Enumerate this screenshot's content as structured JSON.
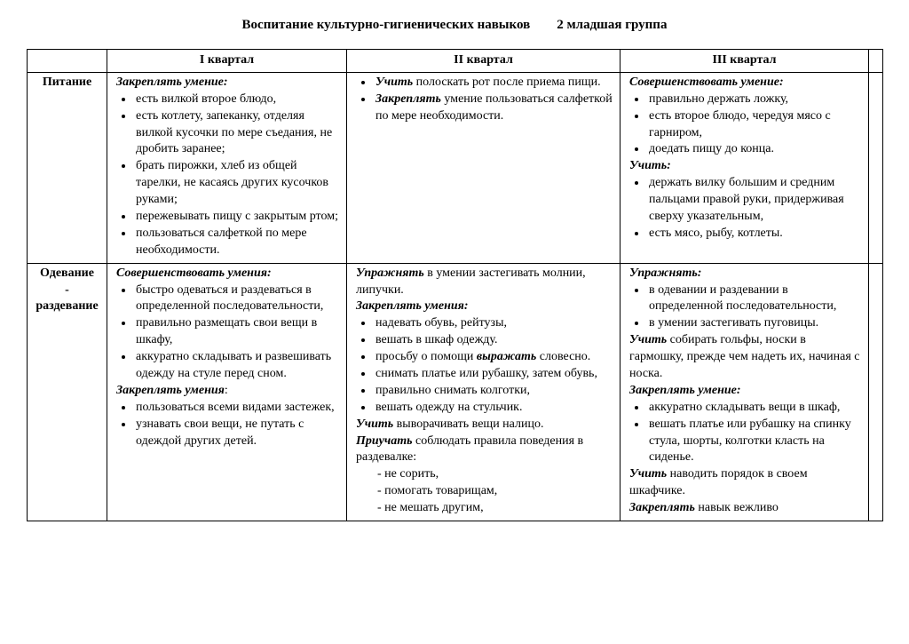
{
  "title_left": "Воспитание культурно-гигиенических навыков",
  "title_right": "2 младшая группа",
  "headers": [
    "",
    "I квартал",
    "II квартал",
    "III квартал"
  ],
  "rows": [
    {
      "label": "Питание",
      "q1": [
        {
          "type": "line",
          "cls": "plain-line",
          "segs": [
            {
              "t": "Закреплять умение:",
              "s": "bi"
            }
          ]
        },
        {
          "type": "ul",
          "items": [
            [
              {
                "t": "есть вилкой второе блюдо,",
                "s": ""
              }
            ],
            [
              {
                "t": "есть котлету, запеканку, отделяя вилкой кусочки по мере съедания, не дробить заранее;",
                "s": ""
              }
            ],
            [
              {
                "t": "брать пирожки, хлеб из общей тарелки, не касаясь других кусочков руками;",
                "s": ""
              }
            ],
            [
              {
                "t": "пережевывать пищу с закрытым ртом;",
                "s": ""
              }
            ],
            [
              {
                "t": "пользоваться салфеткой по мере необходимости.",
                "s": ""
              }
            ]
          ]
        }
      ],
      "q2": [
        {
          "type": "ul",
          "items": [
            [
              {
                "t": "Учить",
                "s": "bi"
              },
              {
                "t": " полоскать рот после приема пищи.",
                "s": ""
              }
            ],
            [
              {
                "t": "Закреплять",
                "s": "bi"
              },
              {
                "t": " умение пользоваться салфеткой по мере необходимости.",
                "s": ""
              }
            ]
          ]
        }
      ],
      "q3": [
        {
          "type": "line",
          "cls": "plain-line",
          "segs": [
            {
              "t": "Совершенствовать умение:",
              "s": "bi"
            }
          ]
        },
        {
          "type": "ul",
          "items": [
            [
              {
                "t": "правильно держать ложку,",
                "s": ""
              }
            ],
            [
              {
                "t": " есть второе блюдо, чередуя мясо с гарниром,",
                "s": ""
              }
            ],
            [
              {
                "t": "доедать пищу до конца.",
                "s": ""
              }
            ]
          ]
        },
        {
          "type": "line",
          "cls": "plain-line",
          "segs": [
            {
              "t": "Учить:",
              "s": "bi"
            }
          ]
        },
        {
          "type": "ul",
          "items": [
            [
              {
                "t": "держать вилку большим и средним пальцами правой руки, придерживая сверху указательным,",
                "s": ""
              }
            ],
            [
              {
                "t": "есть мясо, рыбу, котлеты.",
                "s": ""
              }
            ]
          ]
        }
      ]
    },
    {
      "label": "Одевание\n-\nраздевание",
      "q1": [
        {
          "type": "line",
          "cls": "plain-line",
          "segs": [
            {
              "t": "Совершенствовать умения:",
              "s": "bi"
            }
          ]
        },
        {
          "type": "ul",
          "items": [
            [
              {
                "t": "быстро одеваться и раздеваться в определенной последовательности,",
                "s": ""
              }
            ],
            [
              {
                "t": "правильно размещать свои вещи в шкафу,",
                "s": ""
              }
            ],
            [
              {
                "t": "аккуратно складывать и развешивать одежду на стуле перед сном.",
                "s": ""
              }
            ]
          ]
        },
        {
          "type": "line",
          "cls": "plain-line",
          "segs": [
            {
              "t": "Закреплять умения",
              "s": "bi"
            },
            {
              "t": ":",
              "s": ""
            }
          ]
        },
        {
          "type": "ul",
          "items": [
            [
              {
                "t": "пользоваться всеми видами застежек,",
                "s": ""
              }
            ],
            [
              {
                "t": "узнавать свои вещи, не путать с одеждой других детей.",
                "s": ""
              }
            ]
          ]
        }
      ],
      "q2": [
        {
          "type": "line",
          "cls": "plain-line",
          "segs": [
            {
              "t": " Упражнять",
              "s": "bi"
            },
            {
              "t": " в умении застегивать молнии, липучки.",
              "s": ""
            }
          ]
        },
        {
          "type": "line",
          "cls": "plain-line",
          "segs": [
            {
              "t": "Закреплять умения:",
              "s": "bi"
            }
          ]
        },
        {
          "type": "ul",
          "items": [
            [
              {
                "t": "надевать обувь, рейтузы,",
                "s": ""
              }
            ],
            [
              {
                "t": "вешать в шкаф одежду.",
                "s": ""
              }
            ],
            [
              {
                "t": "просьбу о помощи ",
                "s": ""
              },
              {
                "t": "выражать",
                "s": "bi"
              },
              {
                "t": " словесно.",
                "s": ""
              }
            ],
            [
              {
                "t": "снимать платье или рубашку, затем обувь,",
                "s": ""
              }
            ],
            [
              {
                "t": "правильно снимать колготки,",
                "s": ""
              }
            ],
            [
              {
                "t": "вешать одежду на стульчик.",
                "s": ""
              }
            ]
          ]
        },
        {
          "type": "line",
          "cls": "plain-line",
          "segs": [
            {
              "t": "Учить",
              "s": "bi"
            },
            {
              "t": " выворачивать вещи налицо.",
              "s": ""
            }
          ]
        },
        {
          "type": "line",
          "cls": "plain-line",
          "segs": [
            {
              "t": "Приучать",
              "s": "bi"
            },
            {
              "t": " соблюдать правила поведения в раздевалке:",
              "s": ""
            }
          ]
        },
        {
          "type": "line",
          "cls": "indent-line",
          "segs": [
            {
              "t": "- не сорить,",
              "s": ""
            }
          ]
        },
        {
          "type": "line",
          "cls": "indent-line",
          "segs": [
            {
              "t": "- помогать товарищам,",
              "s": ""
            }
          ]
        },
        {
          "type": "line",
          "cls": "indent-line",
          "segs": [
            {
              "t": "- не мешать другим,",
              "s": ""
            }
          ]
        }
      ],
      "q3": [
        {
          "type": "line",
          "cls": "plain-line",
          "segs": [
            {
              "t": " Упражнять:",
              "s": "bi"
            }
          ]
        },
        {
          "type": "ul",
          "items": [
            [
              {
                "t": "в одевании и раздевании в определенной последовательности,",
                "s": ""
              }
            ],
            [
              {
                "t": "в умении застегивать пуговицы.",
                "s": ""
              }
            ]
          ]
        },
        {
          "type": "line",
          "cls": "plain-line",
          "segs": [
            {
              "t": "Учить",
              "s": "bi"
            },
            {
              "t": " собирать гольфы, носки в гармошку, прежде чем надеть их, начиная с носка.",
              "s": ""
            }
          ]
        },
        {
          "type": "line",
          "cls": "plain-line",
          "segs": [
            {
              "t": "Закреплять умение:",
              "s": "bi"
            }
          ]
        },
        {
          "type": "ul",
          "items": [
            [
              {
                "t": "аккуратно складывать вещи в шкаф,",
                "s": ""
              }
            ],
            [
              {
                "t": "вешать платье или рубашку на спинку стула, шорты,  колготки класть на сиденье.",
                "s": ""
              }
            ]
          ]
        },
        {
          "type": "line",
          "cls": "plain-line",
          "segs": [
            {
              "t": "Учить",
              "s": "bi"
            },
            {
              "t": " наводить порядок в своем шкафчике.",
              "s": ""
            }
          ]
        },
        {
          "type": "line",
          "cls": "plain-line",
          "segs": [
            {
              "t": "Закреплять",
              "s": "bi"
            },
            {
              "t": " навык вежливо",
              "s": ""
            }
          ]
        }
      ]
    }
  ]
}
